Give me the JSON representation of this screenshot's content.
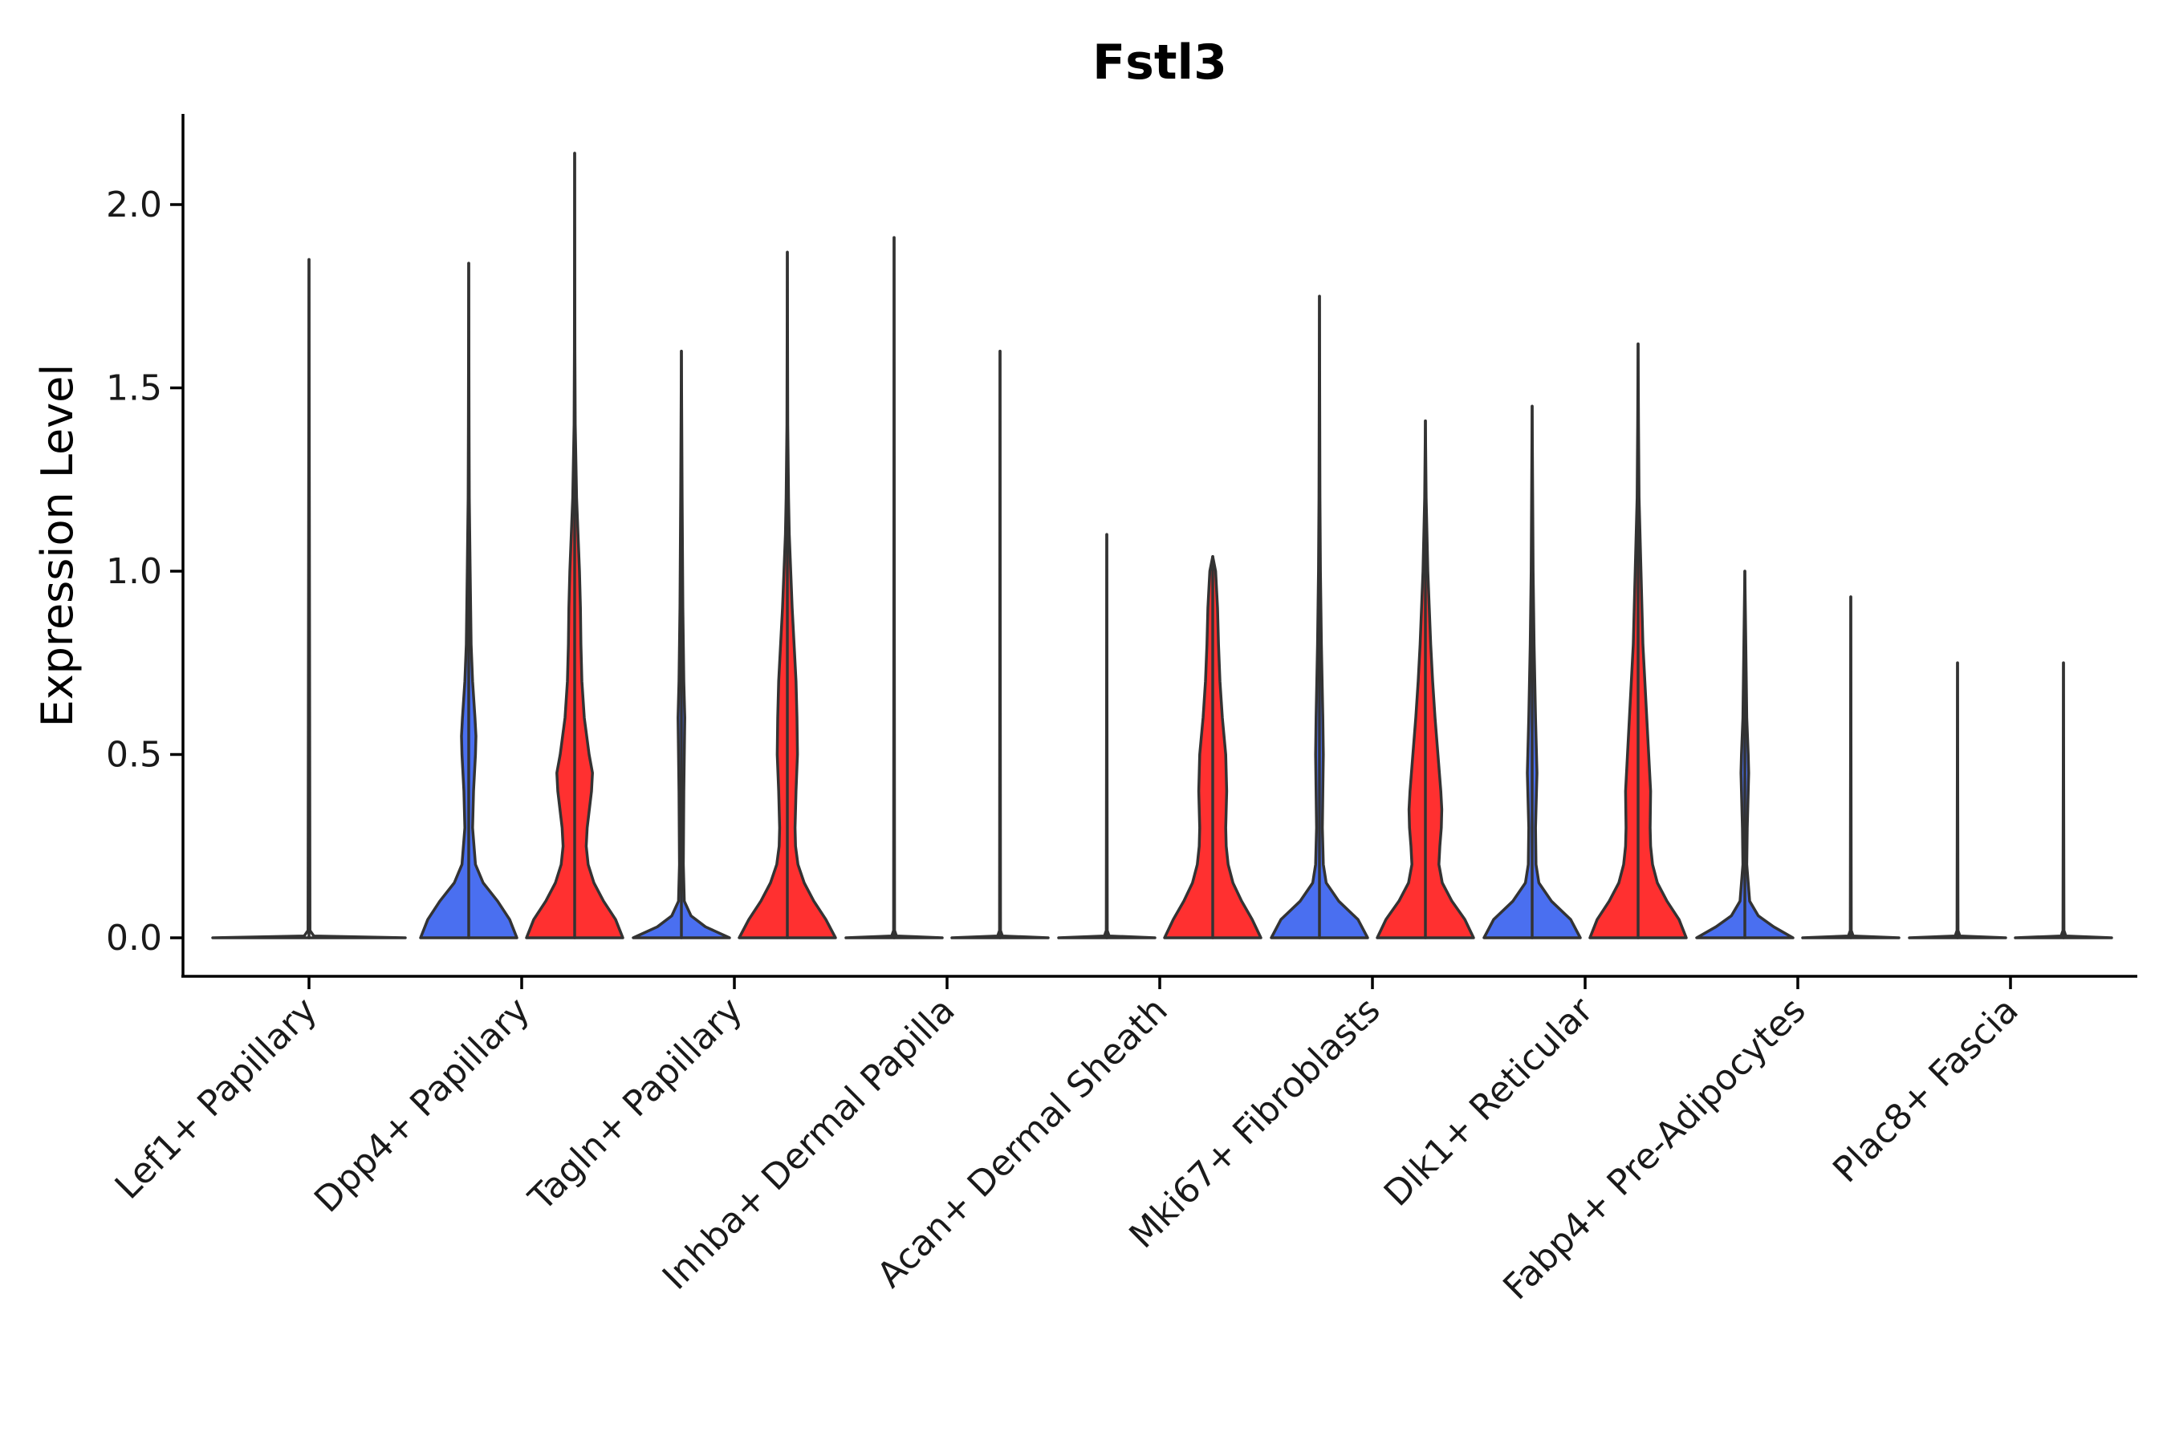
{
  "chart_data": {
    "type": "violin",
    "title": "Fstl3",
    "xlabel": "",
    "ylabel": "Expression Level",
    "ylim": [
      -0.1,
      2.25
    ],
    "yticks": [
      0.0,
      0.5,
      1.0,
      1.5,
      2.0
    ],
    "ytick_labels": [
      "0.0",
      "0.5",
      "1.0",
      "1.5",
      "2.0"
    ],
    "colors": {
      "group_a": "#4a6ff0",
      "group_b": "#ff3030",
      "outline": "#333333",
      "none": "#ffffff"
    },
    "categories": [
      "Lef1+ Papillary",
      "Dpp4+ Papillary",
      "Tagln+ Papillary",
      "Inhba+ Dermal Papilla",
      "Acan+ Dermal Sheath",
      "Mki67+ Fibroblasts",
      "Dlk1+ Reticular",
      "Fabp4+ Pre-Adipocytes",
      "Plac8+ Fascia"
    ],
    "violins": [
      {
        "category": "Lef1+ Papillary",
        "slot": "single",
        "color": "none",
        "max": 1.85,
        "profile": [
          [
            0.0,
            1.0
          ],
          [
            0.005,
            0.05
          ],
          [
            0.02,
            0.01
          ],
          [
            1.85,
            0.0
          ]
        ]
      },
      {
        "category": "Dpp4+ Papillary",
        "slot": "left",
        "color": "group_a",
        "max": 1.84,
        "profile": [
          [
            0.0,
            1.0
          ],
          [
            0.05,
            0.85
          ],
          [
            0.1,
            0.6
          ],
          [
            0.15,
            0.3
          ],
          [
            0.2,
            0.14
          ],
          [
            0.3,
            0.08
          ],
          [
            0.4,
            0.1
          ],
          [
            0.5,
            0.14
          ],
          [
            0.55,
            0.15
          ],
          [
            0.6,
            0.13
          ],
          [
            0.7,
            0.08
          ],
          [
            0.8,
            0.05
          ],
          [
            1.0,
            0.03
          ],
          [
            1.2,
            0.012
          ],
          [
            1.4,
            0.006
          ],
          [
            1.84,
            0.0
          ]
        ]
      },
      {
        "category": "Dpp4+ Papillary",
        "slot": "right",
        "color": "group_b",
        "max": 2.14,
        "profile": [
          [
            0.0,
            1.0
          ],
          [
            0.05,
            0.85
          ],
          [
            0.1,
            0.6
          ],
          [
            0.15,
            0.4
          ],
          [
            0.2,
            0.28
          ],
          [
            0.25,
            0.24
          ],
          [
            0.3,
            0.26
          ],
          [
            0.4,
            0.35
          ],
          [
            0.45,
            0.37
          ],
          [
            0.5,
            0.3
          ],
          [
            0.6,
            0.2
          ],
          [
            0.7,
            0.15
          ],
          [
            0.8,
            0.13
          ],
          [
            0.9,
            0.12
          ],
          [
            1.0,
            0.1
          ],
          [
            1.1,
            0.07
          ],
          [
            1.2,
            0.04
          ],
          [
            1.4,
            0.012
          ],
          [
            1.6,
            0.005
          ],
          [
            2.14,
            0.0
          ]
        ]
      },
      {
        "category": "Tagln+ Papillary",
        "slot": "left",
        "color": "group_a",
        "max": 1.6,
        "profile": [
          [
            0.0,
            1.0
          ],
          [
            0.03,
            0.5
          ],
          [
            0.06,
            0.2
          ],
          [
            0.1,
            0.06
          ],
          [
            0.2,
            0.04
          ],
          [
            0.4,
            0.05
          ],
          [
            0.6,
            0.07
          ],
          [
            0.7,
            0.05
          ],
          [
            0.9,
            0.03
          ],
          [
            1.2,
            0.015
          ],
          [
            1.6,
            0.0
          ]
        ]
      },
      {
        "category": "Tagln+ Papillary",
        "slot": "right",
        "color": "group_b",
        "max": 1.87,
        "profile": [
          [
            0.0,
            1.0
          ],
          [
            0.05,
            0.8
          ],
          [
            0.1,
            0.55
          ],
          [
            0.15,
            0.35
          ],
          [
            0.2,
            0.22
          ],
          [
            0.25,
            0.17
          ],
          [
            0.3,
            0.16
          ],
          [
            0.4,
            0.18
          ],
          [
            0.5,
            0.21
          ],
          [
            0.6,
            0.2
          ],
          [
            0.7,
            0.18
          ],
          [
            0.8,
            0.14
          ],
          [
            0.9,
            0.1
          ],
          [
            1.0,
            0.07
          ],
          [
            1.1,
            0.04
          ],
          [
            1.2,
            0.025
          ],
          [
            1.4,
            0.008
          ],
          [
            1.87,
            0.0
          ]
        ]
      },
      {
        "category": "Inhba+ Dermal Papilla",
        "slot": "left",
        "color": "none",
        "max": 1.91,
        "profile": [
          [
            0.0,
            1.0
          ],
          [
            0.005,
            0.05
          ],
          [
            0.02,
            0.01
          ],
          [
            1.91,
            0.0
          ]
        ]
      },
      {
        "category": "Inhba+ Dermal Papilla",
        "slot": "right",
        "color": "none",
        "max": 1.6,
        "profile": [
          [
            0.0,
            1.0
          ],
          [
            0.005,
            0.05
          ],
          [
            0.02,
            0.01
          ],
          [
            1.6,
            0.0
          ]
        ]
      },
      {
        "category": "Acan+ Dermal Sheath",
        "slot": "left",
        "color": "none",
        "max": 1.1,
        "profile": [
          [
            0.0,
            1.0
          ],
          [
            0.005,
            0.05
          ],
          [
            0.02,
            0.01
          ],
          [
            1.1,
            0.0
          ]
        ]
      },
      {
        "category": "Acan+ Dermal Sheath",
        "slot": "right",
        "color": "group_b",
        "max": 1.04,
        "profile": [
          [
            0.0,
            1.0
          ],
          [
            0.05,
            0.82
          ],
          [
            0.1,
            0.6
          ],
          [
            0.15,
            0.42
          ],
          [
            0.2,
            0.32
          ],
          [
            0.25,
            0.28
          ],
          [
            0.3,
            0.27
          ],
          [
            0.4,
            0.29
          ],
          [
            0.5,
            0.27
          ],
          [
            0.6,
            0.2
          ],
          [
            0.7,
            0.15
          ],
          [
            0.8,
            0.12
          ],
          [
            0.9,
            0.1
          ],
          [
            1.0,
            0.06
          ],
          [
            1.04,
            0.0
          ]
        ]
      },
      {
        "category": "Mki67+ Fibroblasts",
        "slot": "left",
        "color": "group_a",
        "max": 1.75,
        "profile": [
          [
            0.0,
            1.0
          ],
          [
            0.05,
            0.8
          ],
          [
            0.1,
            0.4
          ],
          [
            0.15,
            0.14
          ],
          [
            0.2,
            0.08
          ],
          [
            0.3,
            0.06
          ],
          [
            0.4,
            0.07
          ],
          [
            0.5,
            0.08
          ],
          [
            0.6,
            0.07
          ],
          [
            0.8,
            0.04
          ],
          [
            1.0,
            0.02
          ],
          [
            1.2,
            0.01
          ],
          [
            1.75,
            0.0
          ]
        ]
      },
      {
        "category": "Mki67+ Fibroblasts",
        "slot": "right",
        "color": "group_b",
        "max": 1.41,
        "profile": [
          [
            0.0,
            1.0
          ],
          [
            0.05,
            0.82
          ],
          [
            0.1,
            0.55
          ],
          [
            0.15,
            0.35
          ],
          [
            0.2,
            0.28
          ],
          [
            0.25,
            0.3
          ],
          [
            0.3,
            0.33
          ],
          [
            0.35,
            0.34
          ],
          [
            0.4,
            0.32
          ],
          [
            0.5,
            0.26
          ],
          [
            0.6,
            0.2
          ],
          [
            0.7,
            0.15
          ],
          [
            0.8,
            0.11
          ],
          [
            0.9,
            0.08
          ],
          [
            1.0,
            0.05
          ],
          [
            1.2,
            0.015
          ],
          [
            1.41,
            0.0
          ]
        ]
      },
      {
        "category": "Dlk1+ Reticular",
        "slot": "left",
        "color": "group_a",
        "max": 1.45,
        "profile": [
          [
            0.0,
            1.0
          ],
          [
            0.05,
            0.8
          ],
          [
            0.1,
            0.4
          ],
          [
            0.15,
            0.14
          ],
          [
            0.2,
            0.08
          ],
          [
            0.3,
            0.07
          ],
          [
            0.4,
            0.09
          ],
          [
            0.45,
            0.1
          ],
          [
            0.5,
            0.09
          ],
          [
            0.6,
            0.07
          ],
          [
            0.8,
            0.04
          ],
          [
            1.0,
            0.02
          ],
          [
            1.45,
            0.0
          ]
        ]
      },
      {
        "category": "Dlk1+ Reticular",
        "slot": "right",
        "color": "group_b",
        "max": 1.62,
        "profile": [
          [
            0.0,
            1.0
          ],
          [
            0.05,
            0.85
          ],
          [
            0.1,
            0.6
          ],
          [
            0.15,
            0.4
          ],
          [
            0.2,
            0.3
          ],
          [
            0.25,
            0.26
          ],
          [
            0.3,
            0.25
          ],
          [
            0.4,
            0.26
          ],
          [
            0.5,
            0.22
          ],
          [
            0.6,
            0.18
          ],
          [
            0.7,
            0.14
          ],
          [
            0.8,
            0.1
          ],
          [
            0.9,
            0.08
          ],
          [
            1.0,
            0.06
          ],
          [
            1.2,
            0.02
          ],
          [
            1.4,
            0.008
          ],
          [
            1.62,
            0.0
          ]
        ]
      },
      {
        "category": "Fabp4+ Pre-Adipocytes",
        "slot": "left",
        "color": "group_a",
        "max": 1.0,
        "profile": [
          [
            0.0,
            1.0
          ],
          [
            0.03,
            0.6
          ],
          [
            0.06,
            0.28
          ],
          [
            0.1,
            0.1
          ],
          [
            0.2,
            0.04
          ],
          [
            0.3,
            0.05
          ],
          [
            0.4,
            0.07
          ],
          [
            0.45,
            0.08
          ],
          [
            0.5,
            0.07
          ],
          [
            0.6,
            0.04
          ],
          [
            0.8,
            0.02
          ],
          [
            1.0,
            0.0
          ]
        ]
      },
      {
        "category": "Fabp4+ Pre-Adipocytes",
        "slot": "right",
        "color": "none",
        "max": 0.93,
        "profile": [
          [
            0.0,
            1.0
          ],
          [
            0.005,
            0.05
          ],
          [
            0.02,
            0.01
          ],
          [
            0.93,
            0.0
          ]
        ]
      },
      {
        "category": "Plac8+ Fascia",
        "slot": "left",
        "color": "none",
        "max": 0.75,
        "profile": [
          [
            0.0,
            1.0
          ],
          [
            0.005,
            0.05
          ],
          [
            0.02,
            0.01
          ],
          [
            0.75,
            0.0
          ]
        ]
      },
      {
        "category": "Plac8+ Fascia",
        "slot": "right",
        "color": "none",
        "max": 0.75,
        "profile": [
          [
            0.0,
            1.0
          ],
          [
            0.005,
            0.05
          ],
          [
            0.02,
            0.01
          ],
          [
            0.75,
            0.0
          ]
        ]
      }
    ]
  }
}
